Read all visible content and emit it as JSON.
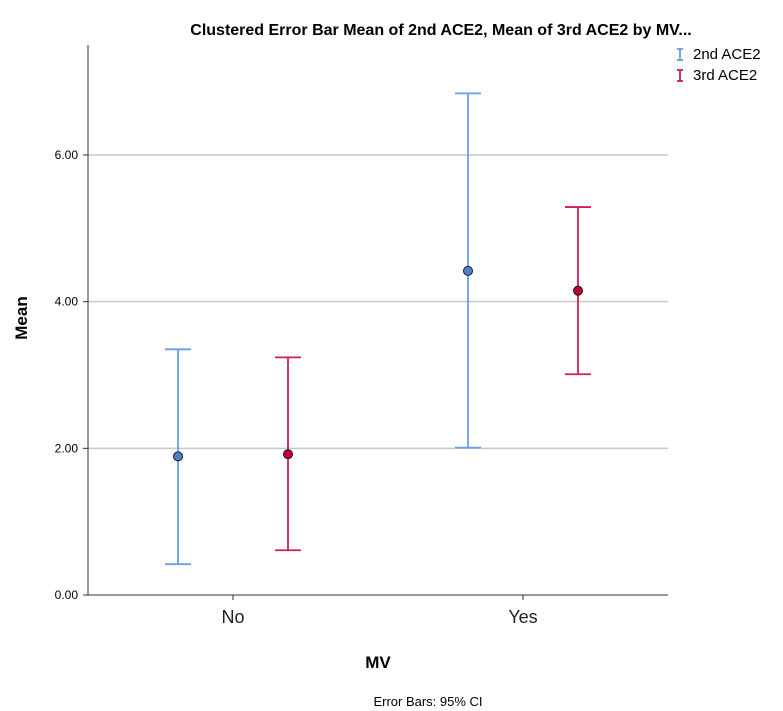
{
  "chart_data": {
    "type": "error-bar",
    "title": "Clustered Error Bar Mean of 2nd ACE2, Mean of 3rd ACE2 by MV...",
    "xlabel": "MV",
    "ylabel": "Mean",
    "categories": [
      "No",
      "Yes"
    ],
    "ylim": [
      0,
      7.5
    ],
    "yticks": [
      0,
      2,
      4,
      6
    ],
    "ytick_labels": [
      "0.00",
      "2.00",
      "4.00",
      "6.00"
    ],
    "grid": true,
    "legend_position": "top-right",
    "footnote": "Error Bars: 95% CI",
    "series": [
      {
        "name": "2nd ACE2",
        "color": "#6a9fe8",
        "marker_fill": "#4f7fc8",
        "mean": [
          1.89,
          4.42
        ],
        "lower": [
          0.42,
          2.01
        ],
        "upper": [
          3.35,
          6.84
        ]
      },
      {
        "name": "3rd ACE2",
        "color": "#d0204a",
        "marker_fill": "#c00030",
        "mean": [
          1.92,
          4.15
        ],
        "lower": [
          0.61,
          3.01
        ],
        "upper": [
          3.24,
          5.29
        ]
      }
    ]
  }
}
